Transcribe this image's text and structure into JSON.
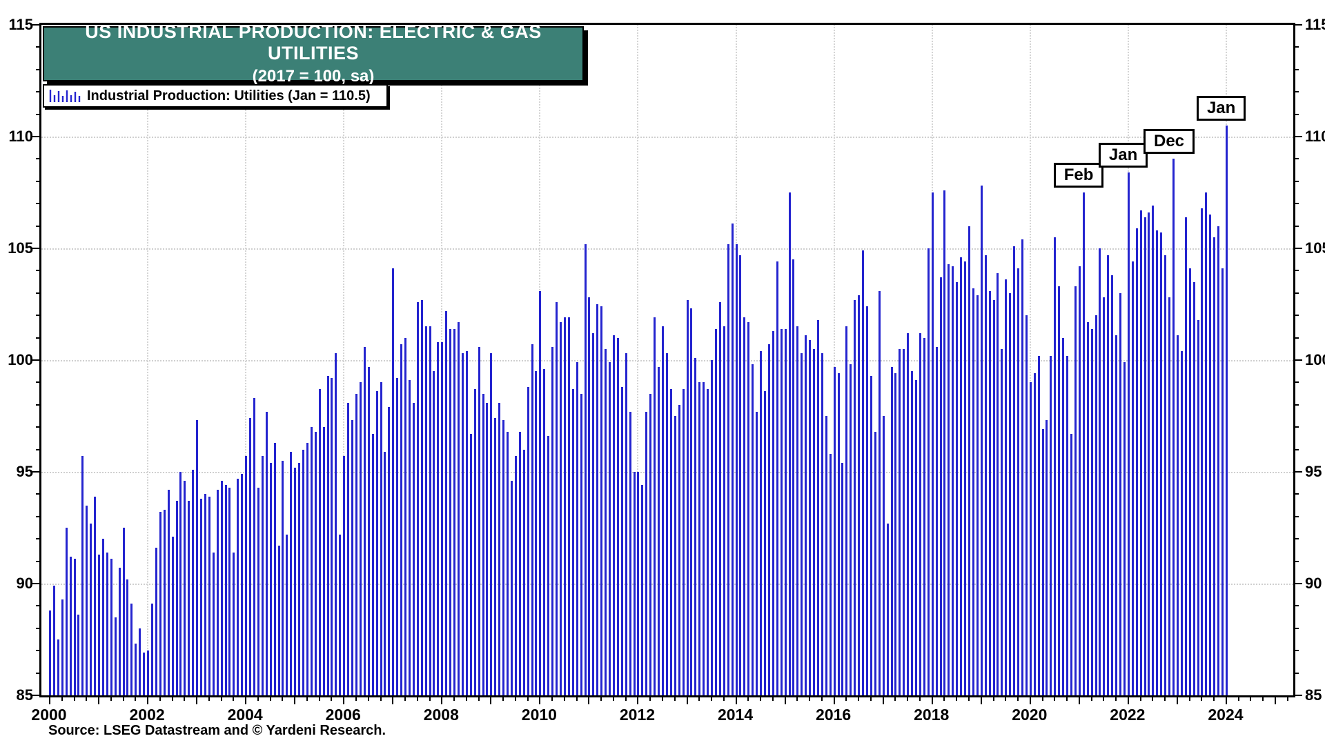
{
  "title": {
    "line1": "US INDUSTRIAL PRODUCTION: ELECTRIC & GAS UTILITIES",
    "line2": "(2017 = 100, sa)"
  },
  "legend": {
    "label": "Industrial Production: Utilities (Jan = 110.5)"
  },
  "source": "Source: LSEG Datastream and © Yardeni Research.",
  "colors": {
    "bar": "#2424cf",
    "title_bg": "#3C8076",
    "grid": "#cfcfcf",
    "axis": "#000000",
    "title_text": "#ffffff"
  },
  "axes": {
    "y_tick_labels": [
      "85",
      "90",
      "95",
      "100",
      "105",
      "110",
      "115"
    ],
    "x_year_labels": [
      "2000",
      "2002",
      "2004",
      "2006",
      "2008",
      "2010",
      "2012",
      "2014",
      "2016",
      "2018",
      "2020",
      "2022",
      "2024"
    ],
    "y_min": 85,
    "y_max": 115
  },
  "callouts": [
    {
      "label": "Feb",
      "month": "2021-02",
      "month_index": 253,
      "value": 107.5
    },
    {
      "label": "Jan",
      "month": "2022-01",
      "month_index": 264,
      "value": 108.4
    },
    {
      "label": "Dec",
      "month": "2022-12",
      "month_index": 275,
      "value": 109.0
    },
    {
      "label": "Jan",
      "month": "2024-01",
      "month_index": 288,
      "value": 110.5
    }
  ],
  "chart_data": {
    "type": "bar",
    "title": "US INDUSTRIAL PRODUCTION: ELECTRIC & GAS UTILITIES",
    "subtitle": "(2017 = 100, sa)",
    "series_name": "Industrial Production: Utilities",
    "frequency": "monthly",
    "start_month": "2000-01",
    "end_month": "2024-01",
    "ylim": [
      85,
      115
    ],
    "grid": true,
    "legend_position": "top-left",
    "values": [
      88.8,
      89.9,
      87.5,
      89.3,
      92.5,
      91.2,
      91.1,
      88.6,
      95.7,
      93.5,
      92.7,
      93.9,
      91.3,
      92.0,
      91.4,
      91.1,
      88.5,
      90.7,
      92.5,
      90.2,
      89.1,
      87.3,
      88.0,
      86.9,
      87.0,
      89.1,
      91.6,
      93.2,
      93.3,
      94.2,
      92.1,
      93.7,
      95.0,
      94.6,
      93.7,
      95.1,
      97.3,
      93.8,
      94.0,
      93.9,
      91.4,
      94.2,
      94.6,
      94.4,
      94.3,
      91.4,
      94.7,
      94.9,
      95.7,
      97.4,
      98.3,
      94.3,
      95.7,
      97.7,
      95.4,
      96.3,
      91.7,
      95.5,
      92.2,
      95.9,
      95.2,
      95.4,
      96.0,
      96.3,
      97.0,
      96.8,
      98.7,
      97.0,
      99.3,
      99.2,
      100.3,
      92.2,
      95.7,
      98.1,
      97.3,
      98.5,
      99.0,
      100.6,
      99.7,
      96.7,
      98.6,
      99.0,
      95.9,
      97.9,
      104.1,
      99.2,
      100.7,
      101.0,
      99.1,
      98.1,
      102.6,
      102.7,
      101.5,
      101.5,
      99.5,
      100.8,
      100.8,
      102.2,
      101.4,
      101.4,
      101.7,
      100.3,
      100.4,
      96.7,
      98.7,
      100.6,
      98.5,
      98.1,
      100.3,
      97.4,
      98.1,
      97.3,
      96.8,
      94.6,
      95.7,
      96.8,
      96.0,
      98.8,
      100.7,
      99.5,
      103.1,
      99.6,
      96.6,
      100.6,
      102.6,
      101.7,
      101.9,
      101.9,
      98.7,
      99.9,
      98.5,
      105.2,
      102.8,
      101.2,
      102.5,
      102.4,
      100.5,
      99.9,
      101.1,
      101.0,
      98.8,
      100.3,
      97.7,
      95.0,
      95.0,
      94.4,
      97.7,
      98.5,
      101.9,
      99.7,
      101.5,
      100.3,
      98.7,
      97.5,
      98.0,
      98.7,
      102.7,
      102.3,
      100.1,
      99.0,
      99.0,
      98.7,
      100.0,
      101.4,
      102.6,
      101.5,
      105.2,
      106.1,
      105.2,
      104.7,
      101.9,
      101.7,
      99.8,
      97.7,
      100.4,
      98.6,
      100.7,
      101.3,
      104.4,
      101.4,
      101.4,
      107.5,
      104.5,
      101.5,
      100.3,
      101.1,
      100.9,
      100.5,
      101.8,
      100.3,
      97.5,
      95.8,
      99.7,
      99.4,
      95.4,
      101.5,
      99.8,
      102.7,
      102.9,
      104.9,
      102.4,
      99.3,
      96.8,
      103.1,
      97.5,
      92.7,
      99.7,
      99.4,
      100.5,
      100.5,
      101.2,
      99.5,
      99.1,
      101.2,
      101.0,
      105.0,
      107.5,
      100.6,
      103.7,
      107.6,
      104.3,
      104.2,
      103.5,
      104.6,
      104.4,
      106.0,
      103.2,
      102.9,
      107.8,
      104.7,
      103.1,
      102.7,
      103.9,
      100.5,
      103.6,
      103.0,
      105.1,
      104.1,
      105.4,
      102.0,
      99.0,
      99.4,
      100.2,
      96.9,
      97.3,
      100.2,
      105.5,
      103.3,
      101.0,
      100.2,
      96.7,
      103.3,
      104.2,
      107.5,
      101.7,
      101.4,
      102.0,
      105.0,
      102.8,
      104.7,
      103.8,
      101.1,
      103.0,
      99.9,
      108.4,
      104.4,
      105.9,
      106.7,
      106.4,
      106.6,
      106.9,
      105.8,
      105.7,
      104.7,
      102.8,
      109.0,
      101.1,
      100.4,
      106.4,
      104.1,
      103.5,
      101.8,
      106.8,
      107.5,
      106.5,
      105.5,
      106.0,
      104.1,
      110.5
    ]
  }
}
